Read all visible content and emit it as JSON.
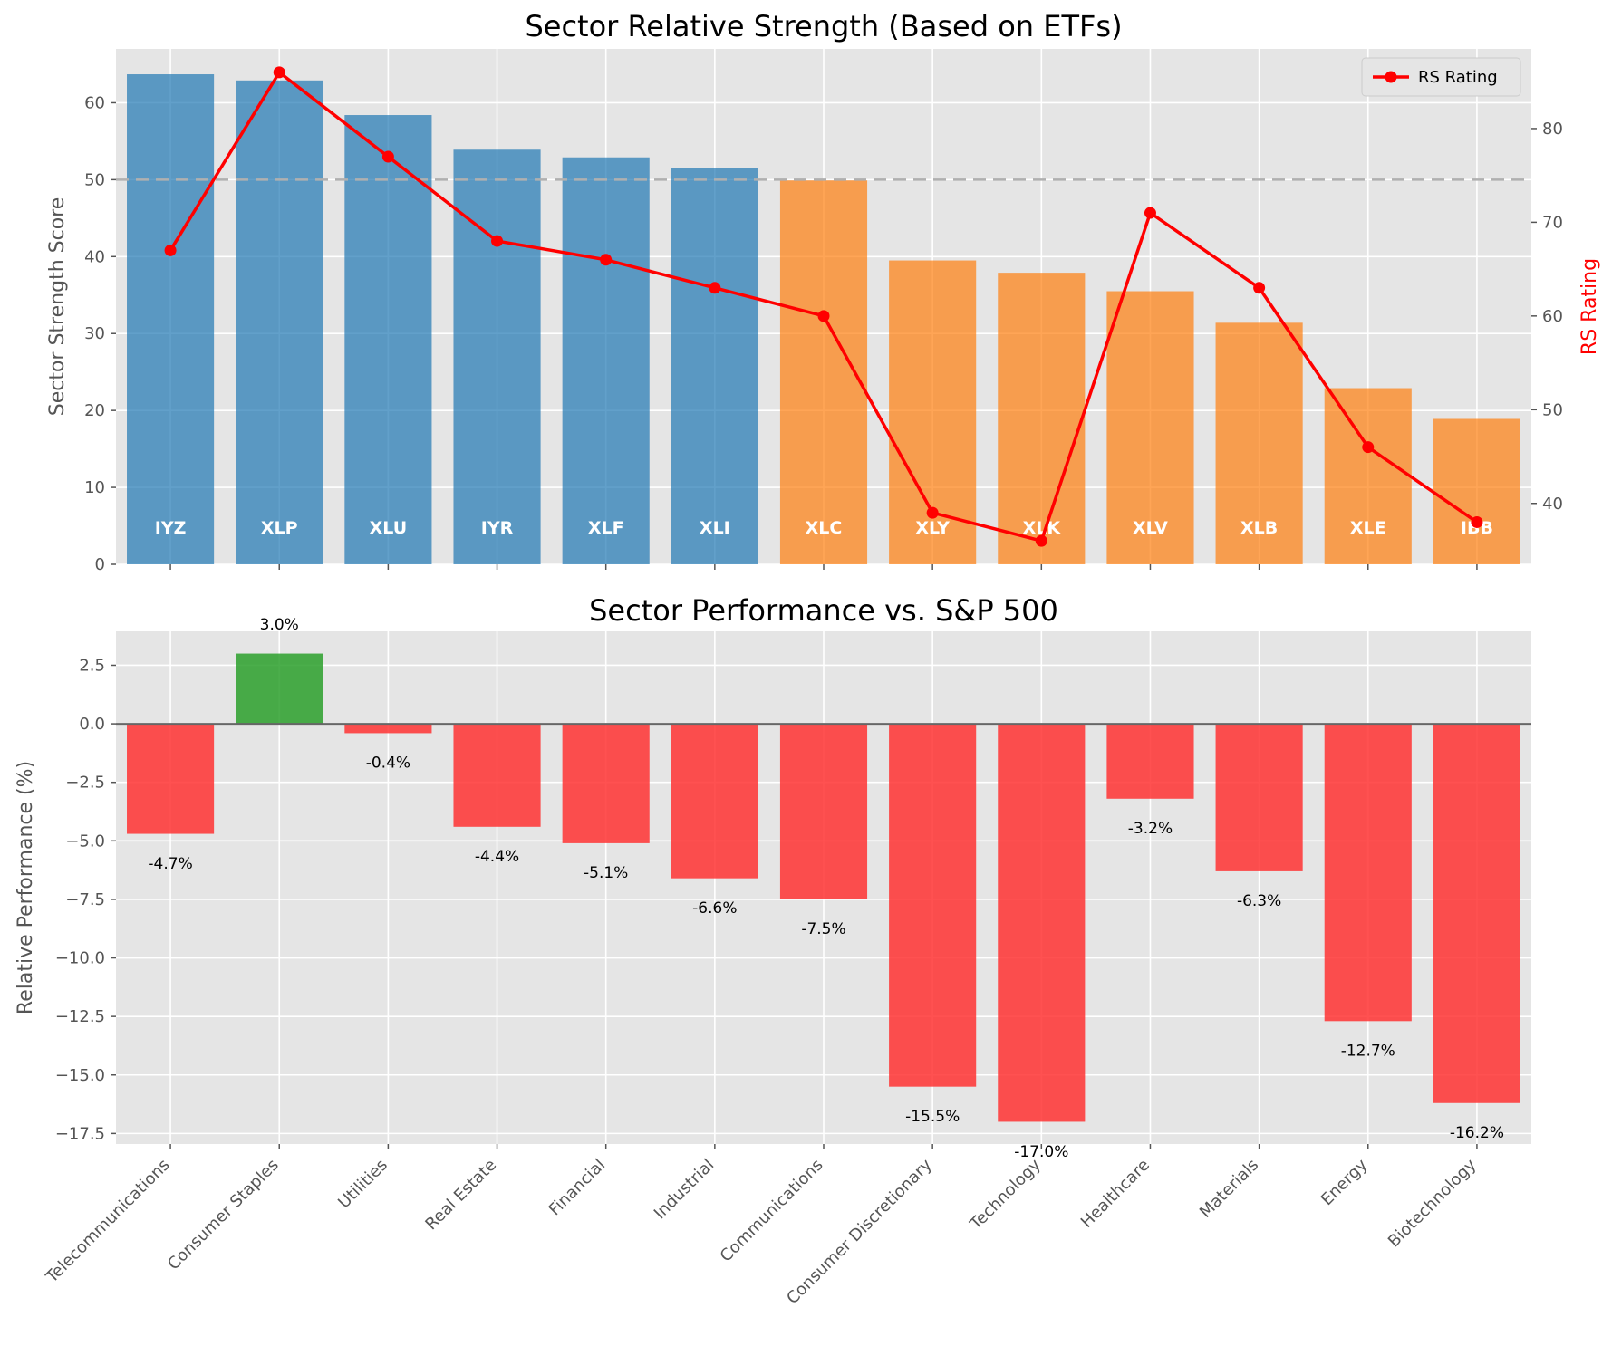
{
  "chart_data": [
    {
      "type": "bar",
      "title": "Sector Relative Strength (Based on ETFs)",
      "ylabel": "Sector Strength Score",
      "y2label": "RS Rating",
      "ylim": [
        0,
        67
      ],
      "y2lim": [
        33.5,
        88.5
      ],
      "yticks": [
        0,
        10,
        20,
        30,
        40,
        50,
        60
      ],
      "y2ticks": [
        40,
        50,
        60,
        70,
        80
      ],
      "threshold": 50,
      "categories": [
        "Telecommunications",
        "Consumer Staples",
        "Utilities",
        "Real Estate",
        "Financial",
        "Industrial",
        "Communications",
        "Consumer Discretionary",
        "Technology",
        "Healthcare",
        "Materials",
        "Energy",
        "Biotechnology"
      ],
      "etfs": [
        "IYZ",
        "XLP",
        "XLU",
        "IYR",
        "XLF",
        "XLI",
        "XLC",
        "XLY",
        "XLK",
        "XLV",
        "XLB",
        "XLE",
        "IBB"
      ],
      "values": [
        63.7,
        62.9,
        58.4,
        53.9,
        52.9,
        51.5,
        49.9,
        39.5,
        37.9,
        35.5,
        31.4,
        22.9,
        18.9
      ],
      "bar_colors": {
        "strong": "#1f77b4",
        "weak": "#ff7f0e"
      },
      "series": [
        {
          "name": "RS Rating",
          "color": "#ff0000",
          "values": [
            67,
            86,
            77,
            68,
            66,
            63,
            60,
            39,
            36,
            71,
            63,
            46,
            38
          ]
        }
      ],
      "legend": "top-right",
      "grid": true
    },
    {
      "type": "bar",
      "title": "Sector Performance vs. S&P 500",
      "ylabel": "Relative Performance (%)",
      "ylim": [
        -17.95,
        3.95
      ],
      "yticks": [
        2.5,
        0.0,
        -2.5,
        -5.0,
        -7.5,
        -10.0,
        -12.5,
        -15.0,
        -17.5
      ],
      "ytick_labels": [
        "2.5",
        "0.0",
        "−2.5",
        "−5.0",
        "−7.5",
        "−10.0",
        "−12.5",
        "−15.0",
        "−17.5"
      ],
      "categories": [
        "Telecommunications",
        "Consumer Staples",
        "Utilities",
        "Real Estate",
        "Financial",
        "Industrial",
        "Communications",
        "Consumer Discretionary",
        "Technology",
        "Healthcare",
        "Materials",
        "Energy",
        "Biotechnology"
      ],
      "values": [
        -4.7,
        3.0,
        -0.4,
        -4.4,
        -5.1,
        -6.6,
        -7.5,
        -15.5,
        -17.0,
        -3.2,
        -6.3,
        -12.7,
        -16.2
      ],
      "value_labels": [
        "-4.7%",
        "3.0%",
        "-0.4%",
        "-4.4%",
        "-5.1%",
        "-6.6%",
        "-7.5%",
        "-15.5%",
        "-17.0%",
        "-3.2%",
        "-6.3%",
        "-12.7%",
        "-16.2%"
      ],
      "bar_colors": {
        "positive": "#2ca02c",
        "negative": "#ff3333"
      },
      "grid": true
    }
  ]
}
